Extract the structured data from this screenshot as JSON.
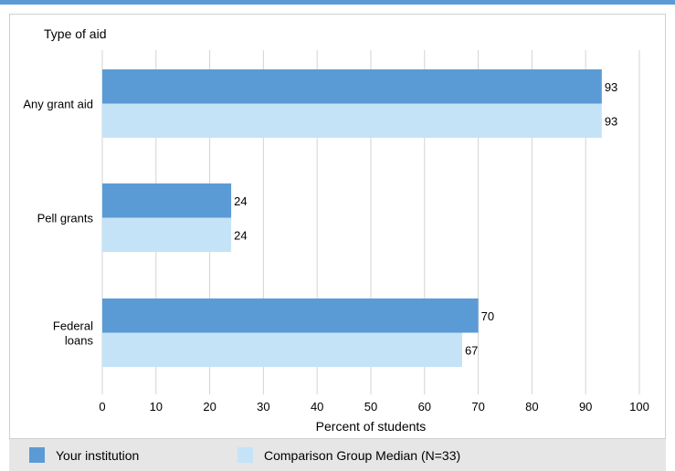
{
  "chart_data": {
    "type": "bar",
    "orientation": "horizontal",
    "title": "Type of aid",
    "xlabel": "Percent of students",
    "xlim": [
      0,
      100
    ],
    "xticks": [
      "0",
      "10",
      "20",
      "30",
      "40",
      "50",
      "60",
      "70",
      "80",
      "90",
      "100"
    ],
    "categories": [
      "Any grant aid",
      "Pell grants",
      "Federal loans"
    ],
    "category_lines": [
      [
        "Any grant aid"
      ],
      [
        "Pell grants"
      ],
      [
        "Federal",
        "loans"
      ]
    ],
    "series": [
      {
        "name": "Your institution",
        "values": [
          93,
          24,
          70
        ],
        "color": "#5b9bd5"
      },
      {
        "name": "Comparison Group Median (N=33)",
        "values": [
          93,
          24,
          67
        ],
        "color": "#c5e3f7"
      }
    ],
    "grid": true,
    "legend_position": "bottom"
  },
  "legend": {
    "items": [
      {
        "label": "Your institution",
        "color": "#5b9bd5"
      },
      {
        "label": "Comparison Group Median (N=33)",
        "color": "#c5e3f7"
      }
    ]
  },
  "colors": {
    "accent": "#5b9bd5",
    "grid": "#d3d3d3",
    "legend_background": "#e6e6e6"
  }
}
